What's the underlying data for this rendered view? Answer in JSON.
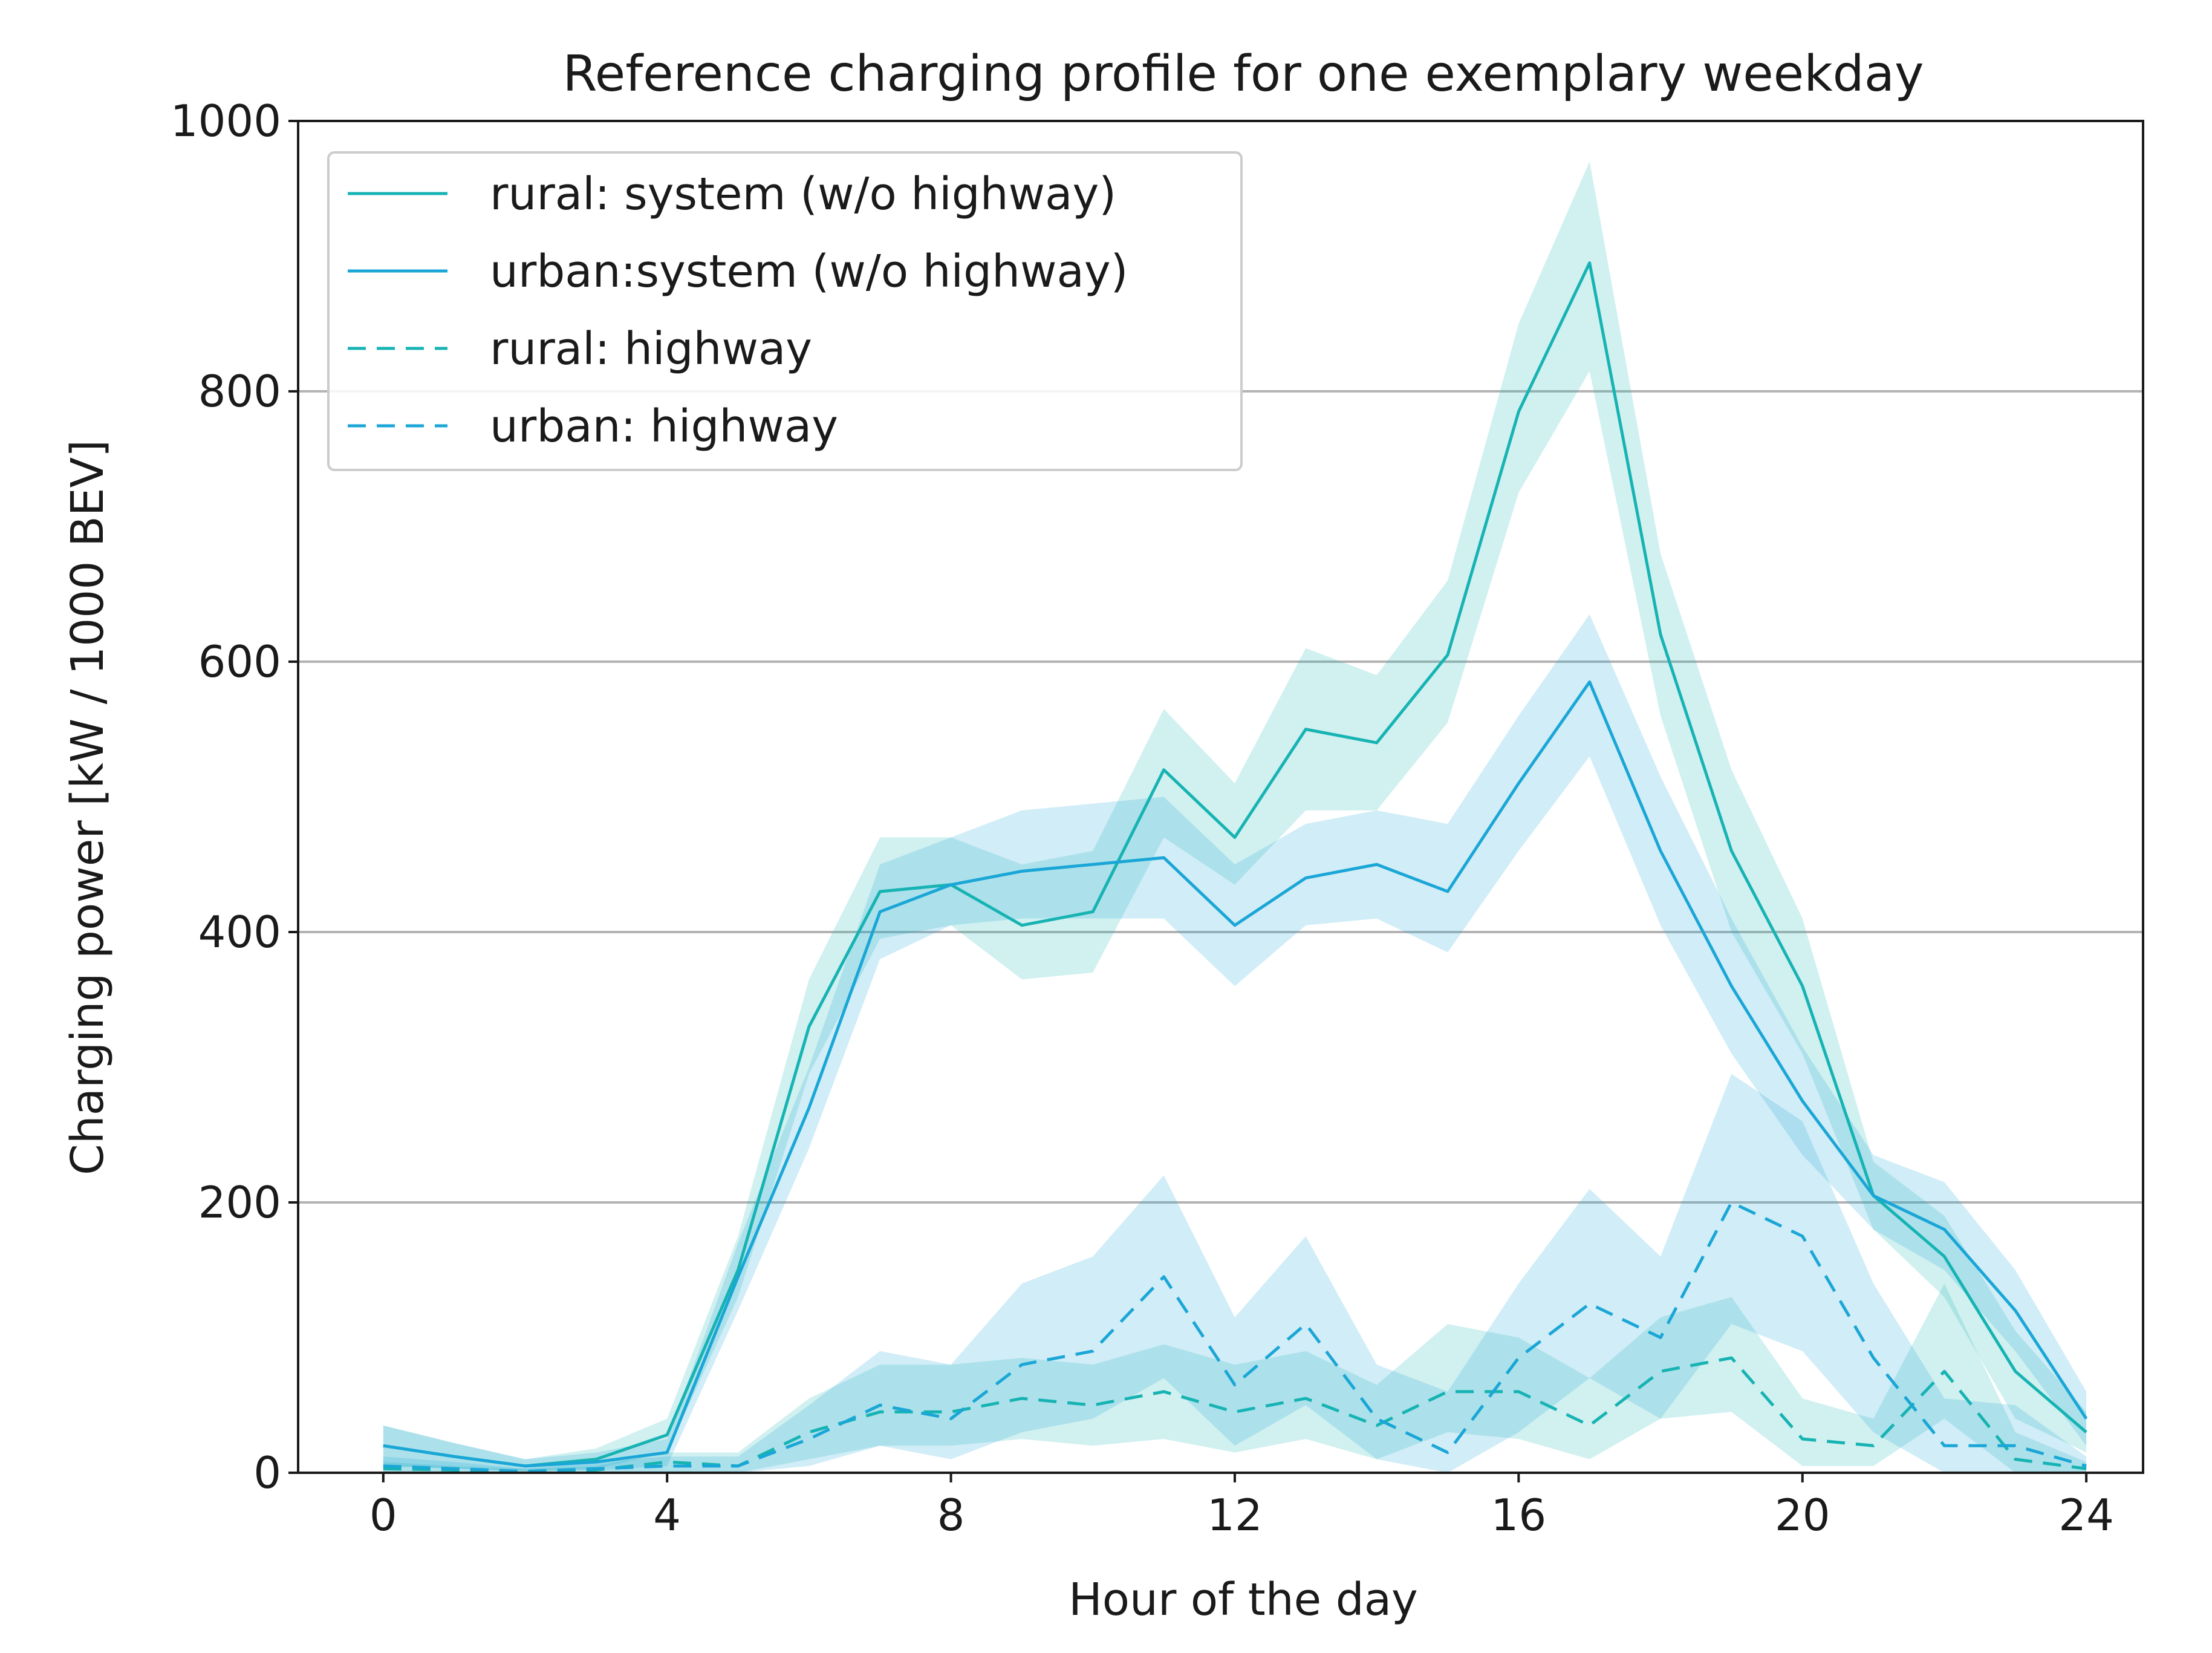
{
  "chart_data": {
    "type": "line",
    "title": "Reference charging profile for one exemplary weekday",
    "xlabel": "Hour of the day",
    "ylabel": "Charging power [kW / 1000 BEV]",
    "xlim": [
      -1.2,
      24.8
    ],
    "ylim": [
      0,
      1000
    ],
    "x_ticks": [
      0,
      4,
      8,
      12,
      16,
      20,
      24
    ],
    "y_ticks": [
      0,
      200,
      400,
      600,
      800,
      1000
    ],
    "grid": "horizontal",
    "legend_position": "upper-left",
    "x": [
      0,
      1,
      2,
      3,
      4,
      5,
      6,
      7,
      8,
      9,
      10,
      11,
      12,
      13,
      14,
      15,
      16,
      17,
      18,
      19,
      20,
      21,
      22,
      23,
      24
    ],
    "series": [
      {
        "name": "rural: system (w/o highway)",
        "color": "#17b3b3",
        "style": "solid",
        "values": [
          20,
          12,
          5,
          10,
          28,
          150,
          330,
          430,
          435,
          405,
          415,
          520,
          470,
          550,
          540,
          605,
          785,
          895,
          620,
          460,
          360,
          205,
          160,
          75,
          30
        ],
        "lower": [
          5,
          3,
          1,
          3,
          15,
          130,
          295,
          395,
          405,
          365,
          370,
          470,
          435,
          490,
          490,
          555,
          725,
          815,
          560,
          400,
          310,
          180,
          130,
          40,
          15
        ],
        "upper": [
          35,
          22,
          10,
          18,
          40,
          175,
          365,
          470,
          470,
          450,
          460,
          565,
          510,
          610,
          590,
          660,
          850,
          970,
          680,
          520,
          410,
          230,
          190,
          105,
          45
        ]
      },
      {
        "name": "urban:system (w/o highway)",
        "color": "#1aa6d6",
        "style": "solid",
        "values": [
          20,
          12,
          5,
          8,
          15,
          145,
          270,
          415,
          435,
          445,
          450,
          455,
          405,
          440,
          450,
          430,
          510,
          585,
          460,
          360,
          275,
          205,
          180,
          120,
          40
        ],
        "lower": [
          5,
          3,
          1,
          2,
          5,
          120,
          240,
          380,
          405,
          410,
          410,
          410,
          360,
          405,
          410,
          385,
          460,
          530,
          405,
          310,
          235,
          180,
          150,
          90,
          20
        ],
        "upper": [
          35,
          22,
          10,
          15,
          25,
          170,
          300,
          450,
          470,
          490,
          495,
          500,
          450,
          480,
          490,
          480,
          560,
          635,
          515,
          410,
          315,
          235,
          215,
          150,
          60
        ]
      },
      {
        "name": "rural: highway",
        "color": "#17b3b3",
        "style": "dashed",
        "values": [
          3,
          2,
          1,
          2,
          8,
          5,
          30,
          45,
          45,
          55,
          50,
          60,
          45,
          55,
          35,
          60,
          60,
          35,
          75,
          85,
          25,
          20,
          75,
          10,
          3
        ],
        "lower": [
          0,
          0,
          0,
          0,
          0,
          0,
          10,
          20,
          20,
          25,
          20,
          25,
          15,
          25,
          10,
          30,
          25,
          10,
          40,
          45,
          5,
          5,
          40,
          0,
          0
        ],
        "upper": [
          8,
          5,
          3,
          5,
          15,
          15,
          55,
          80,
          80,
          85,
          80,
          95,
          80,
          90,
          65,
          110,
          100,
          70,
          115,
          130,
          55,
          40,
          140,
          30,
          8
        ]
      },
      {
        "name": "urban: highway",
        "color": "#1aa6d6",
        "style": "dashed",
        "values": [
          5,
          3,
          1,
          3,
          5,
          5,
          25,
          50,
          40,
          80,
          90,
          145,
          65,
          110,
          40,
          15,
          85,
          125,
          100,
          200,
          175,
          85,
          20,
          20,
          5
        ],
        "lower": [
          0,
          0,
          0,
          0,
          0,
          0,
          5,
          20,
          10,
          30,
          40,
          70,
          20,
          50,
          10,
          0,
          30,
          70,
          40,
          110,
          90,
          30,
          0,
          0,
          0
        ],
        "upper": [
          12,
          8,
          3,
          8,
          12,
          12,
          50,
          90,
          80,
          140,
          160,
          220,
          115,
          175,
          80,
          60,
          140,
          210,
          160,
          295,
          260,
          140,
          55,
          50,
          12
        ]
      }
    ]
  }
}
